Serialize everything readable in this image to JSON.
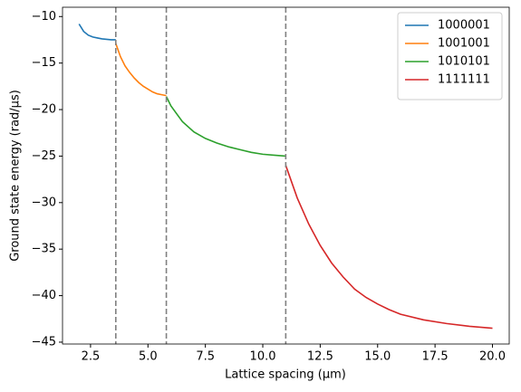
{
  "chart_data": {
    "type": "line",
    "xlabel": "Lattice spacing (μm)",
    "ylabel": "Ground state energy (rad/μs)",
    "xlim": [
      1.28,
      20.73
    ],
    "ylim": [
      -45.2,
      -9.0
    ],
    "xticks": [
      2.5,
      {
        "value": 5,
        "label": "5.0"
      },
      7.5,
      {
        "value": 10,
        "label": "10.0"
      },
      12.5,
      {
        "value": 15,
        "label": "15.0"
      },
      17.5,
      {
        "value": 20,
        "label": "20.0"
      }
    ],
    "yticks": [
      {
        "value": -10,
        "label": "−10"
      },
      {
        "value": -15,
        "label": "−15"
      },
      {
        "value": -20,
        "label": "−20"
      },
      {
        "value": -25,
        "label": "−25"
      },
      {
        "value": -30,
        "label": "−30"
      },
      {
        "value": -35,
        "label": "−35"
      },
      {
        "value": -40,
        "label": "−40"
      },
      {
        "value": -45,
        "label": "−45"
      }
    ],
    "vlines": [
      3.6,
      5.8,
      11.0
    ],
    "vline_color": "#808080",
    "legend": "upper right",
    "series": [
      {
        "name": "1000001",
        "color": "#1f77b4",
        "x": [
          2.0,
          2.2,
          2.4,
          2.6,
          2.8,
          3.0,
          3.2,
          3.4,
          3.6
        ],
        "values": [
          -10.8,
          -11.6,
          -12.0,
          -12.2,
          -12.3,
          -12.4,
          -12.45,
          -12.5,
          -12.5
        ]
      },
      {
        "name": "1001001",
        "color": "#ff7f0e",
        "x": [
          3.6,
          3.8,
          4.0,
          4.2,
          4.4,
          4.6,
          4.8,
          5.0,
          5.2,
          5.4,
          5.6,
          5.8
        ],
        "values": [
          -12.9,
          -14.3,
          -15.3,
          -16.0,
          -16.6,
          -17.1,
          -17.5,
          -17.8,
          -18.1,
          -18.3,
          -18.4,
          -18.5
        ]
      },
      {
        "name": "1010101",
        "color": "#2ca02c",
        "x": [
          5.8,
          6.0,
          6.5,
          7.0,
          7.5,
          8.0,
          8.5,
          9.0,
          9.5,
          10.0,
          10.5,
          11.0
        ],
        "values": [
          -18.6,
          -19.6,
          -21.3,
          -22.4,
          -23.1,
          -23.6,
          -24.0,
          -24.3,
          -24.6,
          -24.8,
          -24.9,
          -25.0
        ]
      },
      {
        "name": "1111111",
        "color": "#d62728",
        "x": [
          11.0,
          11.5,
          12.0,
          12.5,
          13.0,
          13.5,
          14.0,
          14.5,
          15.0,
          15.5,
          16.0,
          17.0,
          18.0,
          19.0,
          20.0
        ],
        "values": [
          -26.0,
          -29.5,
          -32.3,
          -34.6,
          -36.5,
          -38.0,
          -39.3,
          -40.2,
          -40.9,
          -41.5,
          -42.0,
          -42.6,
          -43.0,
          -43.3,
          -43.5
        ]
      }
    ]
  }
}
